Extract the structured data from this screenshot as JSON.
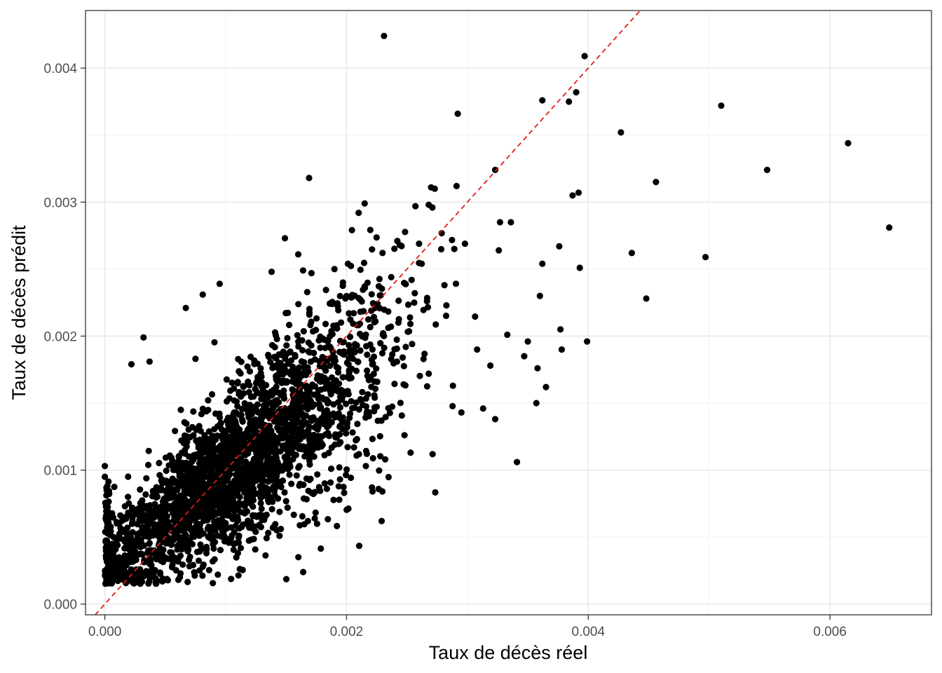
{
  "chart_data": {
    "type": "scatter",
    "title": "",
    "xlabel": "Taux de décès réel",
    "ylabel": "Taux de décès prédit",
    "xlim": [
      -0.00016,
      0.00684
    ],
    "ylim": [
      -8e-05,
      0.00443
    ],
    "x_ticks": [
      0.0,
      0.002,
      0.004,
      0.006
    ],
    "x_tick_labels": [
      "0.000",
      "0.002",
      "0.004",
      "0.006"
    ],
    "y_ticks": [
      0.0,
      0.001,
      0.002,
      0.003,
      0.004
    ],
    "y_tick_labels": [
      "0.000",
      "0.001",
      "0.002",
      "0.003",
      "0.004"
    ],
    "grid": true,
    "legend": "none",
    "colors": {
      "points": "#000000",
      "reference_line": "#e31a1c",
      "grid_major": "#ebebeb",
      "grid_minor": "#f4f4f4",
      "panel_border": "#333333"
    },
    "reference_line": {
      "type": "identity",
      "slope": 1,
      "intercept": 0,
      "style": "dashed"
    },
    "outliers": [
      [
        0.00231,
        0.00424
      ],
      [
        0.00397,
        0.00409
      ],
      [
        0.00362,
        0.00376
      ],
      [
        0.0039,
        0.00382
      ],
      [
        0.00384,
        0.00375
      ],
      [
        0.00292,
        0.00366
      ],
      [
        0.0051,
        0.00372
      ],
      [
        0.00427,
        0.00352
      ],
      [
        0.00615,
        0.00344
      ],
      [
        0.00548,
        0.00324
      ],
      [
        0.00323,
        0.00324
      ],
      [
        0.00169,
        0.00318
      ],
      [
        0.00456,
        0.00315
      ],
      [
        0.00291,
        0.00312
      ],
      [
        0.0027,
        0.00311
      ],
      [
        0.00273,
        0.0031
      ],
      [
        0.00387,
        0.00305
      ],
      [
        0.00392,
        0.00307
      ],
      [
        0.00215,
        0.00299
      ],
      [
        0.00268,
        0.00298
      ],
      [
        0.00257,
        0.00297
      ],
      [
        0.00271,
        0.00296
      ],
      [
        0.0021,
        0.00292
      ],
      [
        0.00327,
        0.00285
      ],
      [
        0.00336,
        0.00285
      ],
      [
        0.00649,
        0.00281
      ],
      [
        0.00149,
        0.00273
      ],
      [
        0.00242,
        0.00271
      ],
      [
        0.00244,
        0.00268
      ],
      [
        0.0026,
        0.00269
      ],
      [
        0.00298,
        0.00269
      ],
      [
        0.00376,
        0.00267
      ],
      [
        0.00326,
        0.00264
      ],
      [
        0.00436,
        0.00262
      ],
      [
        0.00497,
        0.00259
      ],
      [
        0.00362,
        0.00254
      ],
      [
        0.00393,
        0.00251
      ],
      [
        0.00448,
        0.00228
      ],
      [
        0.00399,
        0.00196
      ],
      [
        0.00341,
        0.00106
      ],
      [
        0.00229,
        0.00062
      ],
      [
        0.00221,
        0.00087
      ],
      [
        0.00168,
        0.00062
      ],
      [
        0.00138,
        0.00248
      ],
      [
        0.00237,
        0.00244
      ],
      [
        0.00281,
        0.00238
      ],
      [
        0.00256,
        0.00225
      ],
      [
        0.0023,
        0.00201
      ],
      [
        0.00268,
        0.00172
      ],
      [
        0.00288,
        0.00163
      ],
      [
        0.00313,
        0.00146
      ],
      [
        0.00295,
        0.00143
      ],
      [
        0.00323,
        0.00138
      ],
      [
        0.00365,
        0.00162
      ],
      [
        0.00357,
        0.0015
      ],
      [
        0.00253,
        0.00113
      ],
      [
        0.00216,
        0.00103
      ],
      [
        0.00232,
        0.00108
      ],
      [
        0.00308,
        0.0019
      ],
      [
        0.00319,
        0.00178
      ],
      [
        0.00333,
        0.00201
      ],
      [
        0.0035,
        0.00196
      ],
      [
        0.0036,
        0.0023
      ],
      [
        0.00378,
        0.0019
      ],
      [
        0.00377,
        0.00205
      ],
      [
        0.00347,
        0.00185
      ],
      [
        0.00358,
        0.00176
      ],
      [
        0.00037,
        0.00181
      ],
      [
        0.00022,
        0.00179
      ],
      [
        0.00032,
        0.00199
      ],
      [
        0.00067,
        0.00221
      ],
      [
        0.00075,
        0.00183
      ],
      [
        0.00095,
        0.00239
      ],
      [
        0.00081,
        0.00231
      ],
      [
        0.0,
        0.00103
      ],
      [
        0.0,
        0.00095
      ],
      [
        0.00111,
        0.00051
      ],
      [
        0.00139,
        0.00057
      ],
      [
        0.00155,
        0.00138
      ],
      [
        0.0016,
        0.00261
      ],
      [
        0.00164,
        0.00249
      ],
      [
        0.00171,
        0.00247
      ],
      [
        0.0019,
        0.0025
      ],
      [
        0.00197,
        0.0024
      ]
    ]
  }
}
